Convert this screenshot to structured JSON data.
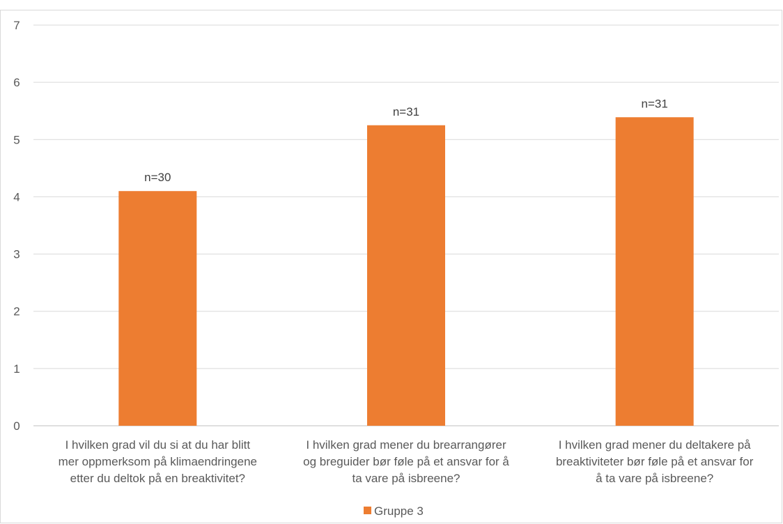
{
  "chart_data": {
    "type": "bar",
    "categories": [
      [
        "I hvilken grad vil du si at du har blitt",
        "mer oppmerksom på klimaendringene",
        "etter du deltok på en breaktivitet?"
      ],
      [
        "I hvilken grad mener du brearrangører",
        "og breguider bør føle på et ansvar for å",
        "ta vare på isbreene?"
      ],
      [
        "I hvilken grad mener du deltakere på",
        "breaktiviteter bør føle på et ansvar for",
        "å ta vare på isbreene?"
      ]
    ],
    "series": [
      {
        "name": "Gruppe 3",
        "color": "#ED7D31",
        "values": [
          4.1,
          5.25,
          5.39
        ],
        "data_labels": [
          "n=30",
          "n=31",
          "n=31"
        ]
      }
    ],
    "yticks": [
      "0",
      "1",
      "2",
      "3",
      "4",
      "5",
      "6",
      "7"
    ],
    "ylim": [
      0,
      7
    ],
    "grid": true,
    "gridColor": "#d9d9d9",
    "legend": "bottom-center"
  }
}
